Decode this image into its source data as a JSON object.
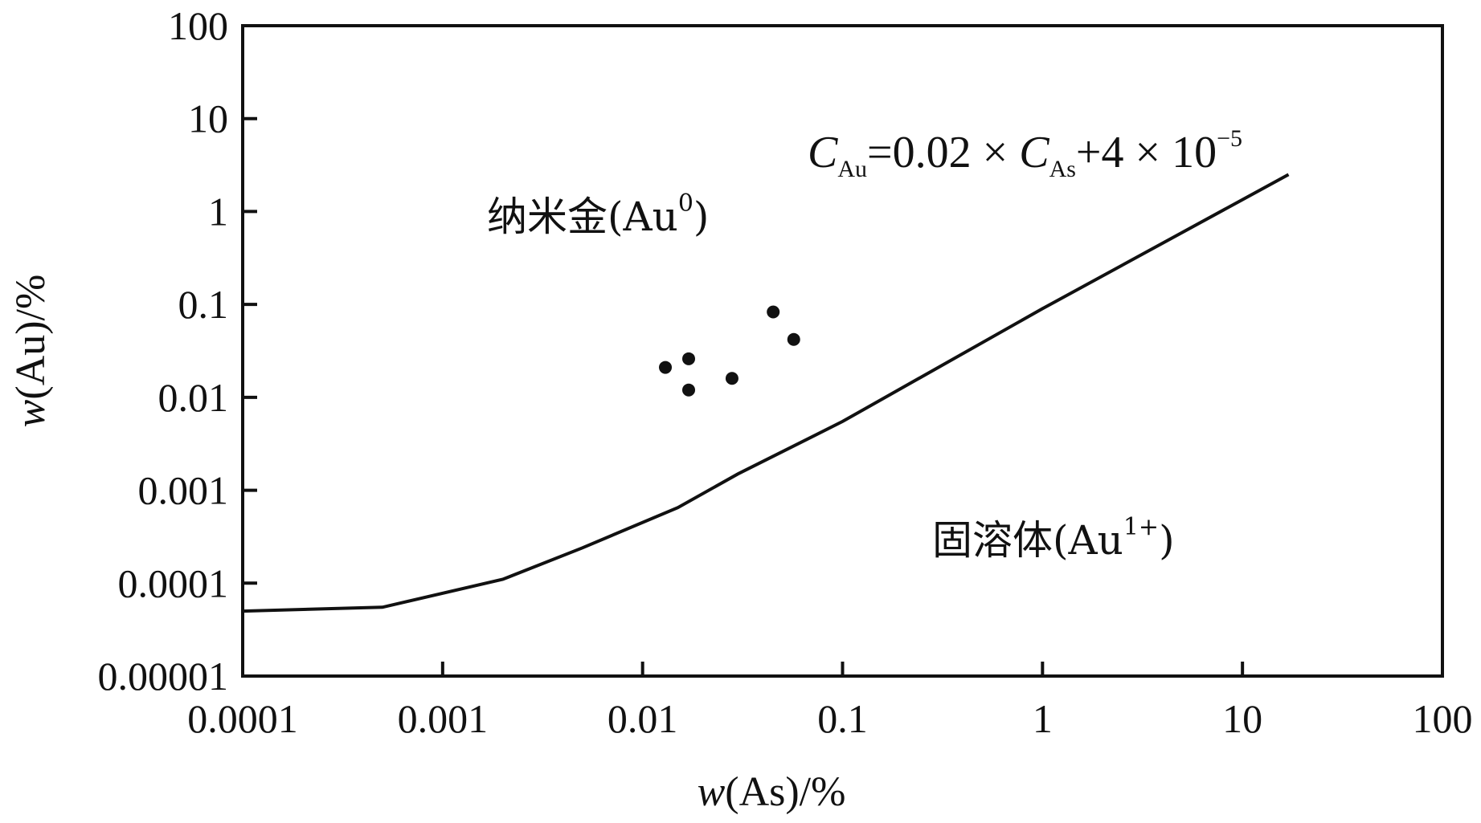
{
  "chart_data": {
    "type": "scatter",
    "title": "",
    "xlabel": {
      "var": "w",
      "rest": "(As)/%"
    },
    "ylabel": {
      "var": "w",
      "rest": "(Au)/%"
    },
    "xscale": "log",
    "yscale": "log",
    "xlim": [
      0.0001,
      100
    ],
    "ylim": [
      1e-05,
      100
    ],
    "xticks": [
      0.0001,
      0.001,
      0.01,
      0.1,
      1,
      10,
      100
    ],
    "xtick_labels": [
      "0.0001",
      "0.001",
      "0.01",
      "0.1",
      "1",
      "10",
      "100"
    ],
    "yticks": [
      1e-05,
      0.0001,
      0.001,
      0.01,
      0.1,
      1,
      10,
      100
    ],
    "ytick_labels": [
      "0.00001",
      "0.0001",
      "0.001",
      "0.01",
      "0.1",
      "1",
      "10",
      "100"
    ],
    "grid": false,
    "points": [
      {
        "x": 0.013,
        "y": 0.021
      },
      {
        "x": 0.017,
        "y": 0.026
      },
      {
        "x": 0.017,
        "y": 0.012
      },
      {
        "x": 0.028,
        "y": 0.016
      },
      {
        "x": 0.045,
        "y": 0.083
      },
      {
        "x": 0.057,
        "y": 0.042
      }
    ],
    "boundary_line": {
      "x": [
        0.0001,
        0.0005,
        0.002,
        0.005,
        0.015,
        0.03,
        0.1,
        1,
        17
      ],
      "y": [
        5e-05,
        5.5e-05,
        0.00011,
        0.00024,
        0.00065,
        0.0015,
        0.0055,
        0.09,
        2.5
      ]
    },
    "annotations": {
      "equation": {
        "c1": "C",
        "s1": "Au",
        "mid": "=0.02 × ",
        "c2": "C",
        "s2": "As",
        "tail": "+4 × 10",
        "exp": "−5"
      },
      "region_upper": {
        "cn": "纳米金",
        "open": "(Au",
        "sup": "0",
        "close": ")"
      },
      "region_lower": {
        "cn": "固溶体",
        "open": "(Au",
        "sup": "1+",
        "close": ")"
      }
    }
  }
}
